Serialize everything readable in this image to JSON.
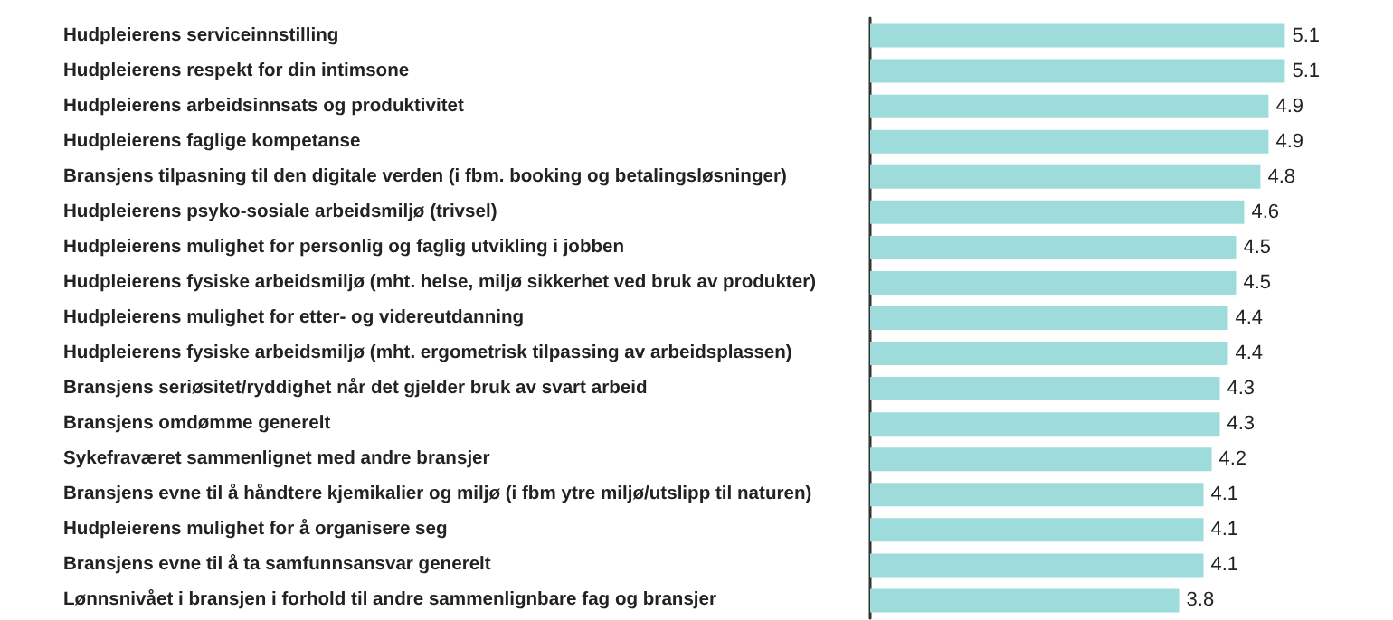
{
  "chart_data": {
    "type": "bar",
    "orientation": "horizontal",
    "data_labels": true,
    "categories": [
      "Hudpleierens serviceinnstilling",
      "Hudpleierens respekt for din intimsone",
      "Hudpleierens arbeidsinnsats og produktivitet",
      "Hudpleierens faglige kompetanse",
      "Bransjens tilpasning til den digitale verden (i fbm. booking og betalingsløsninger)",
      "Hudpleierens psyko-sosiale arbeidsmiljø (trivsel)",
      "Hudpleierens mulighet for personlig og faglig utvikling i jobben",
      "Hudpleierens fysiske arbeidsmiljø (mht. helse, miljø sikkerhet ved bruk av produkter)",
      "Hudpleierens mulighet for etter- og videreutdanning",
      "Hudpleierens fysiske arbeidsmiljø (mht. ergometrisk tilpassing av arbeidsplassen)",
      "Bransjens seriøsitet/ryddighet når det gjelder bruk av svart arbeid",
      "Bransjens omdømme generelt",
      "Sykefraværet sammenlignet med andre bransjer",
      "Bransjens evne til å håndtere kjemikalier og miljø (i fbm ytre miljø/utslipp til naturen)",
      "Hudpleierens mulighet for å organisere seg",
      "Bransjens evne til å ta samfunnsansvar generelt",
      "Lønnsnivået i bransjen i forhold til andre sammenlignbare fag og bransjer"
    ],
    "values": [
      5.1,
      5.1,
      4.9,
      4.9,
      4.8,
      4.6,
      4.5,
      4.5,
      4.4,
      4.4,
      4.3,
      4.3,
      4.2,
      4.1,
      4.1,
      4.1,
      3.8
    ],
    "color": "#9edcdb"
  }
}
